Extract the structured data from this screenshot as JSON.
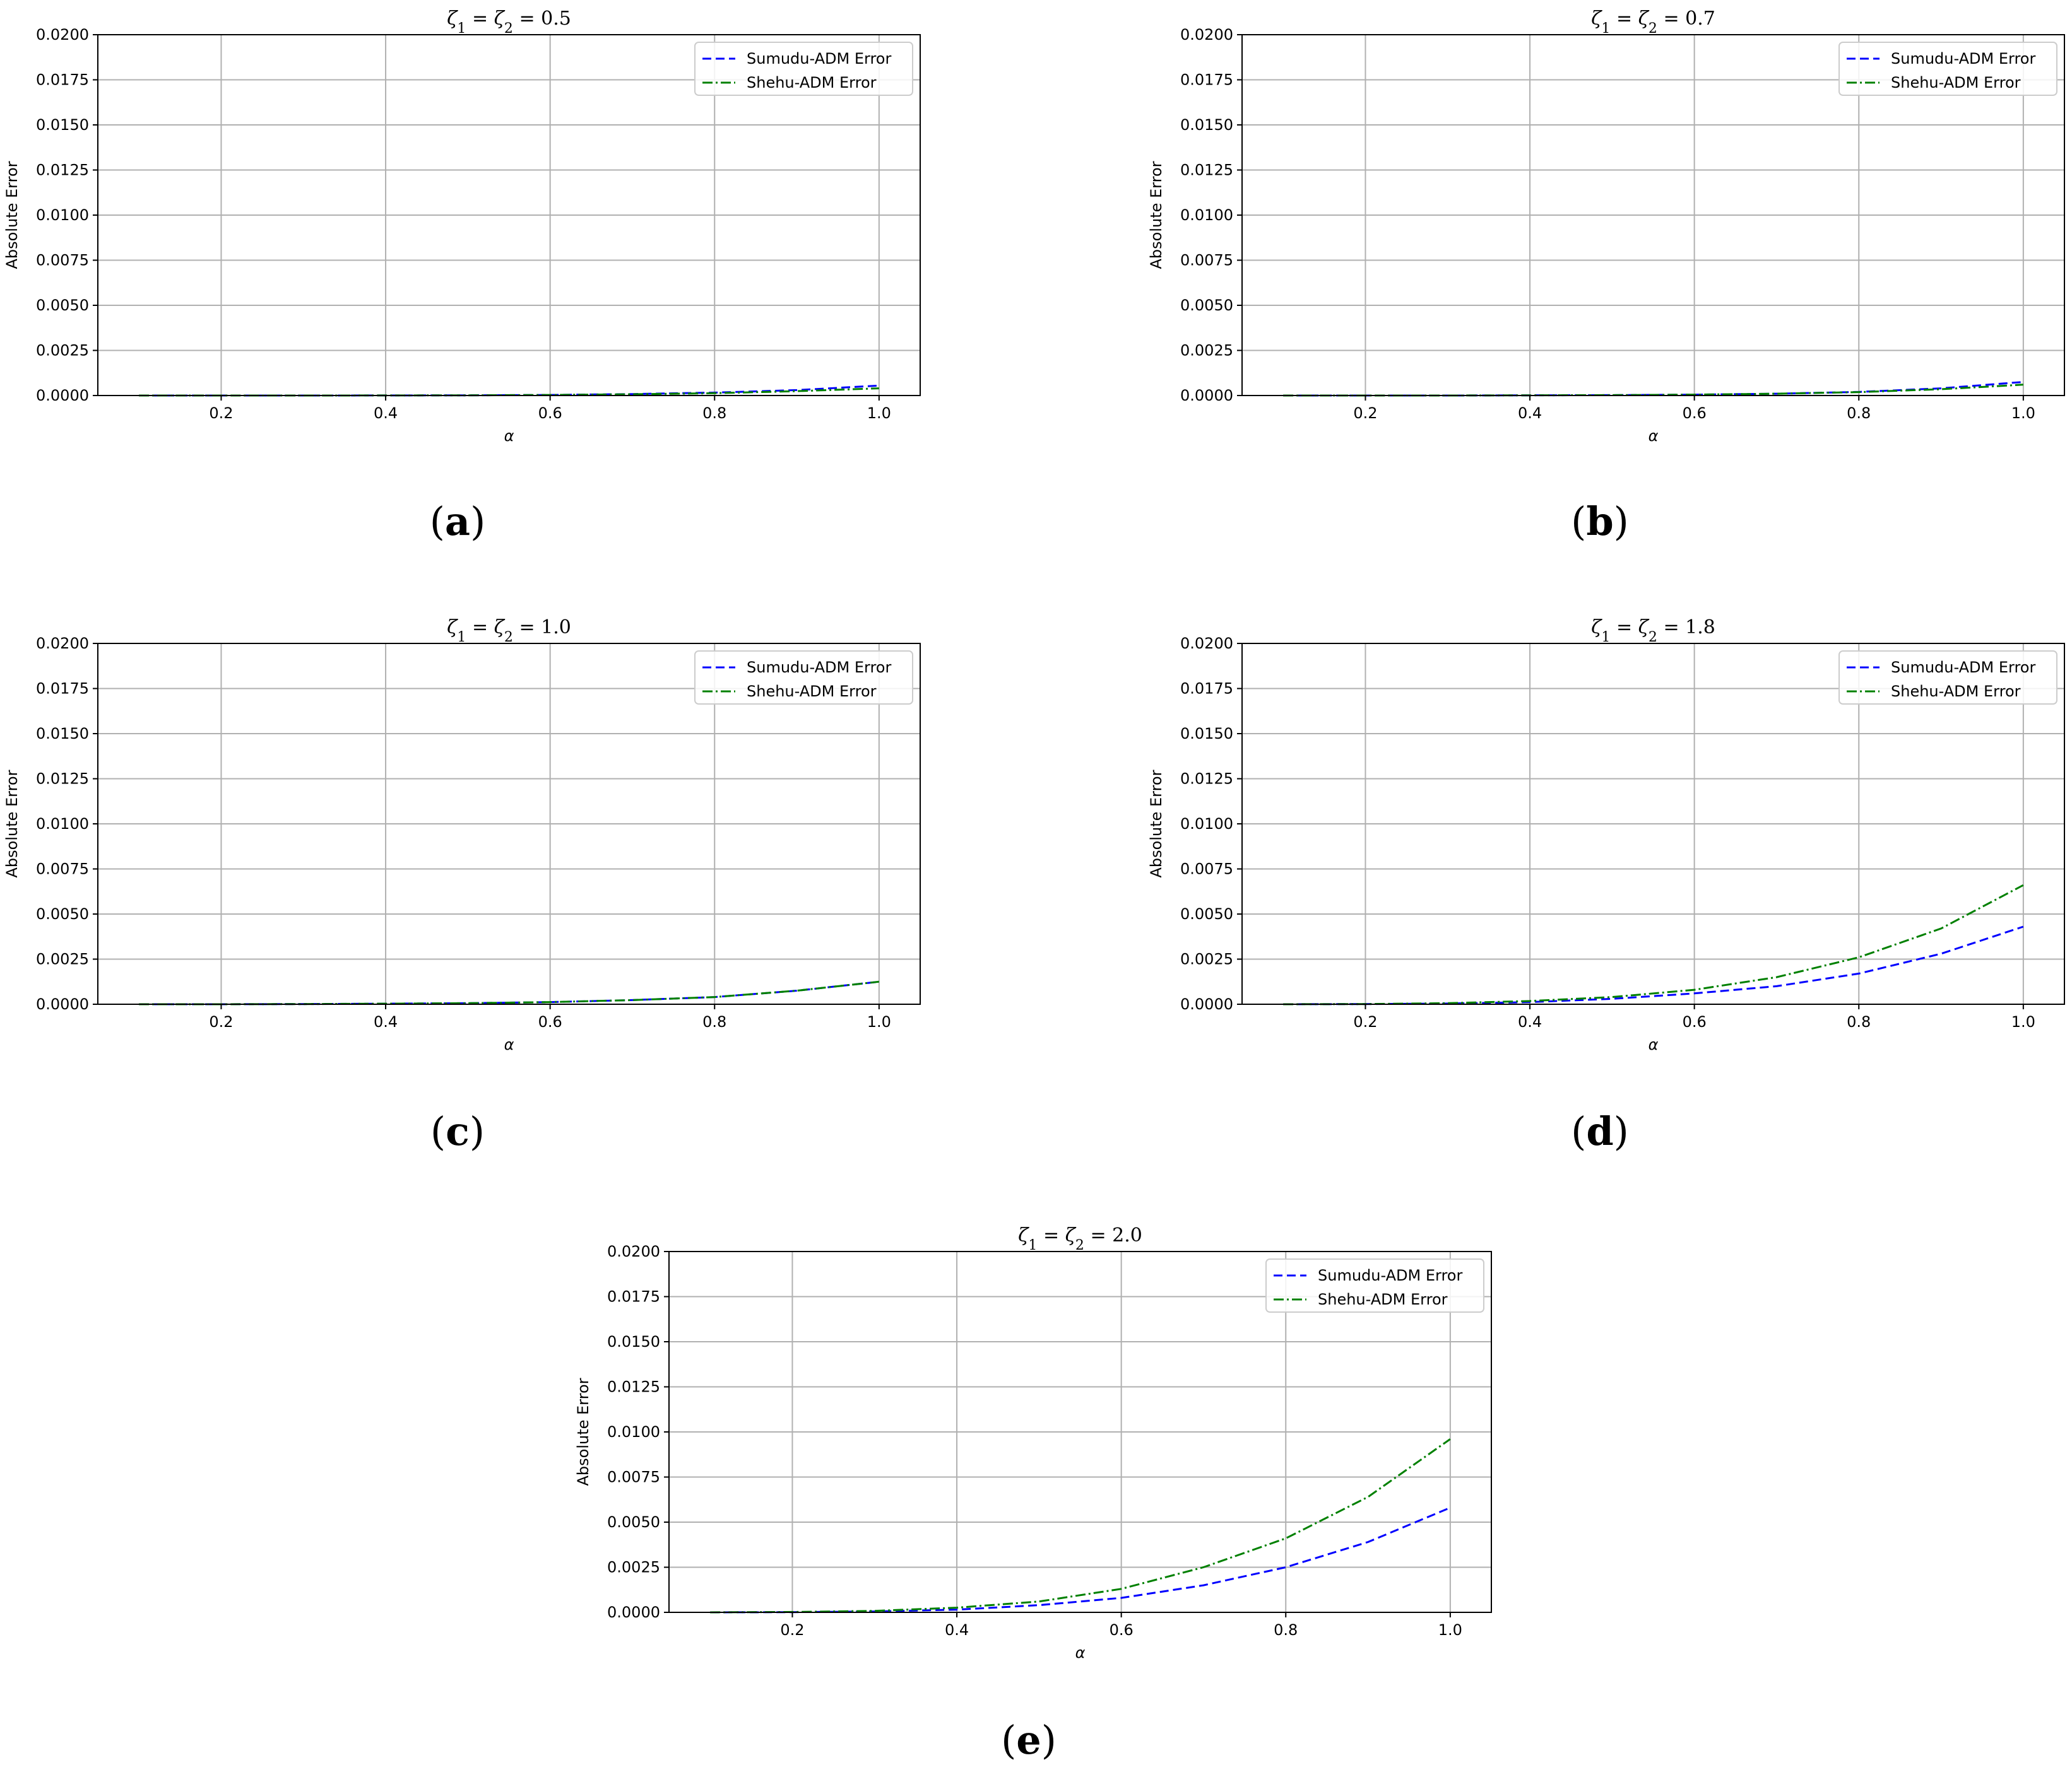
{
  "chart_data": [
    {
      "type": "line",
      "title": "ζ1 = ζ2 = 0.5",
      "xlabel": "α",
      "ylabel": "Absolute Error",
      "xlim": [
        0.05,
        1.05
      ],
      "ylim": [
        0,
        0.02
      ],
      "xticks": [
        "0.2",
        "0.4",
        "0.6",
        "0.8",
        "1.0"
      ],
      "yticks": [
        "0.0000",
        "0.0025",
        "0.0050",
        "0.0075",
        "0.0100",
        "0.0125",
        "0.0150",
        "0.0175",
        "0.0200"
      ],
      "grid": true,
      "legend_position": "top-right",
      "x": [
        0.1,
        0.2,
        0.3,
        0.4,
        0.5,
        0.6,
        0.7,
        0.8,
        0.9,
        1.0
      ],
      "series": [
        {
          "name": "Sumudu-ADM Error",
          "color": "#0000ff",
          "style": "dashed",
          "values": [
            0.0,
            0.0,
            0.0,
            5e-06,
            1e-05,
            3e-05,
            8e-05,
            0.00016,
            0.0003,
            0.00055
          ]
        },
        {
          "name": "Shehu-ADM Error",
          "color": "#008000",
          "style": "dashdot",
          "values": [
            0.0,
            0.0,
            0.0,
            5e-06,
            1e-05,
            3e-05,
            7e-05,
            0.00013,
            0.00024,
            0.0004
          ]
        }
      ],
      "panel_label": "(a)"
    },
    {
      "type": "line",
      "title": "ζ1 = ζ2 = 0.7",
      "xlabel": "α",
      "ylabel": "Absolute Error",
      "xlim": [
        0.05,
        1.05
      ],
      "ylim": [
        0,
        0.02
      ],
      "xticks": [
        "0.2",
        "0.4",
        "0.6",
        "0.8",
        "1.0"
      ],
      "yticks": [
        "0.0000",
        "0.0025",
        "0.0050",
        "0.0075",
        "0.0100",
        "0.0125",
        "0.0150",
        "0.0175",
        "0.0200"
      ],
      "grid": true,
      "legend_position": "top-right",
      "x": [
        0.1,
        0.2,
        0.3,
        0.4,
        0.5,
        0.6,
        0.7,
        0.8,
        0.9,
        1.0
      ],
      "series": [
        {
          "name": "Sumudu-ADM Error",
          "color": "#0000ff",
          "style": "dashed",
          "values": [
            0.0,
            0.0,
            0.0,
            1e-05,
            2e-05,
            5e-05,
            0.0001,
            0.0002,
            0.0004,
            0.00075
          ]
        },
        {
          "name": "Shehu-ADM Error",
          "color": "#008000",
          "style": "dashdot",
          "values": [
            0.0,
            0.0,
            0.0,
            1e-05,
            2e-05,
            5e-05,
            0.0001,
            0.00019,
            0.00035,
            0.0006
          ]
        }
      ],
      "panel_label": "(b)"
    },
    {
      "type": "line",
      "title": "ζ1 = ζ2 = 1.0",
      "xlabel": "α",
      "ylabel": "Absolute Error",
      "xlim": [
        0.05,
        1.05
      ],
      "ylim": [
        0,
        0.02
      ],
      "xticks": [
        "0.2",
        "0.4",
        "0.6",
        "0.8",
        "1.0"
      ],
      "yticks": [
        "0.0000",
        "0.0025",
        "0.0050",
        "0.0075",
        "0.0100",
        "0.0125",
        "0.0150",
        "0.0175",
        "0.0200"
      ],
      "grid": true,
      "legend_position": "top-right",
      "x": [
        0.1,
        0.2,
        0.3,
        0.4,
        0.5,
        0.6,
        0.7,
        0.8,
        0.9,
        1.0
      ],
      "series": [
        {
          "name": "Sumudu-ADM Error",
          "color": "#0000ff",
          "style": "dashed",
          "values": [
            0.0,
            0.0,
            1e-05,
            3e-05,
            6e-05,
            0.00012,
            0.00023,
            0.0004,
            0.00075,
            0.00125
          ]
        },
        {
          "name": "Shehu-ADM Error",
          "color": "#008000",
          "style": "dashdot",
          "values": [
            0.0,
            0.0,
            1e-05,
            3e-05,
            6e-05,
            0.00012,
            0.00023,
            0.0004,
            0.00075,
            0.00125
          ]
        }
      ],
      "panel_label": "(c)"
    },
    {
      "type": "line",
      "title": "ζ1 = ζ2 = 1.8",
      "xlabel": "α",
      "ylabel": "Absolute Error",
      "xlim": [
        0.05,
        1.05
      ],
      "ylim": [
        0,
        0.02
      ],
      "xticks": [
        "0.2",
        "0.4",
        "0.6",
        "0.8",
        "1.0"
      ],
      "yticks": [
        "0.0000",
        "0.0025",
        "0.0050",
        "0.0075",
        "0.0100",
        "0.0125",
        "0.0150",
        "0.0175",
        "0.0200"
      ],
      "grid": true,
      "legend_position": "top-right",
      "x": [
        0.1,
        0.2,
        0.3,
        0.4,
        0.5,
        0.6,
        0.7,
        0.8,
        0.9,
        1.0
      ],
      "series": [
        {
          "name": "Sumudu-ADM Error",
          "color": "#0000ff",
          "style": "dashed",
          "values": [
            0.0,
            1e-05,
            4e-05,
            0.00012,
            0.0003,
            0.0006,
            0.001,
            0.0017,
            0.0028,
            0.0043
          ]
        },
        {
          "name": "Shehu-ADM Error",
          "color": "#008000",
          "style": "dashdot",
          "values": [
            0.0,
            1e-05,
            6e-05,
            0.00018,
            0.0004,
            0.0008,
            0.0015,
            0.0026,
            0.0042,
            0.0066
          ]
        }
      ],
      "panel_label": "(d)"
    },
    {
      "type": "line",
      "title": "ζ1 = ζ2 = 2.0",
      "xlabel": "α",
      "ylabel": "Absolute Error",
      "xlim": [
        0.05,
        1.05
      ],
      "ylim": [
        0,
        0.02
      ],
      "xticks": [
        "0.2",
        "0.4",
        "0.6",
        "0.8",
        "1.0"
      ],
      "yticks": [
        "0.0000",
        "0.0025",
        "0.0050",
        "0.0075",
        "0.0100",
        "0.0125",
        "0.0150",
        "0.0175",
        "0.0200"
      ],
      "grid": true,
      "legend_position": "top-right",
      "x": [
        0.1,
        0.2,
        0.3,
        0.4,
        0.5,
        0.6,
        0.7,
        0.8,
        0.9,
        1.0
      ],
      "series": [
        {
          "name": "Sumudu-ADM Error",
          "color": "#0000ff",
          "style": "dashed",
          "values": [
            0.0,
            1e-05,
            5e-05,
            0.00015,
            0.0004,
            0.0008,
            0.0015,
            0.0025,
            0.0039,
            0.0058
          ]
        },
        {
          "name": "Shehu-ADM Error",
          "color": "#008000",
          "style": "dashdot",
          "values": [
            0.0,
            2e-05,
            8e-05,
            0.00026,
            0.0006,
            0.0013,
            0.0025,
            0.0041,
            0.0064,
            0.0096
          ]
        }
      ],
      "panel_label": "(e)"
    }
  ]
}
